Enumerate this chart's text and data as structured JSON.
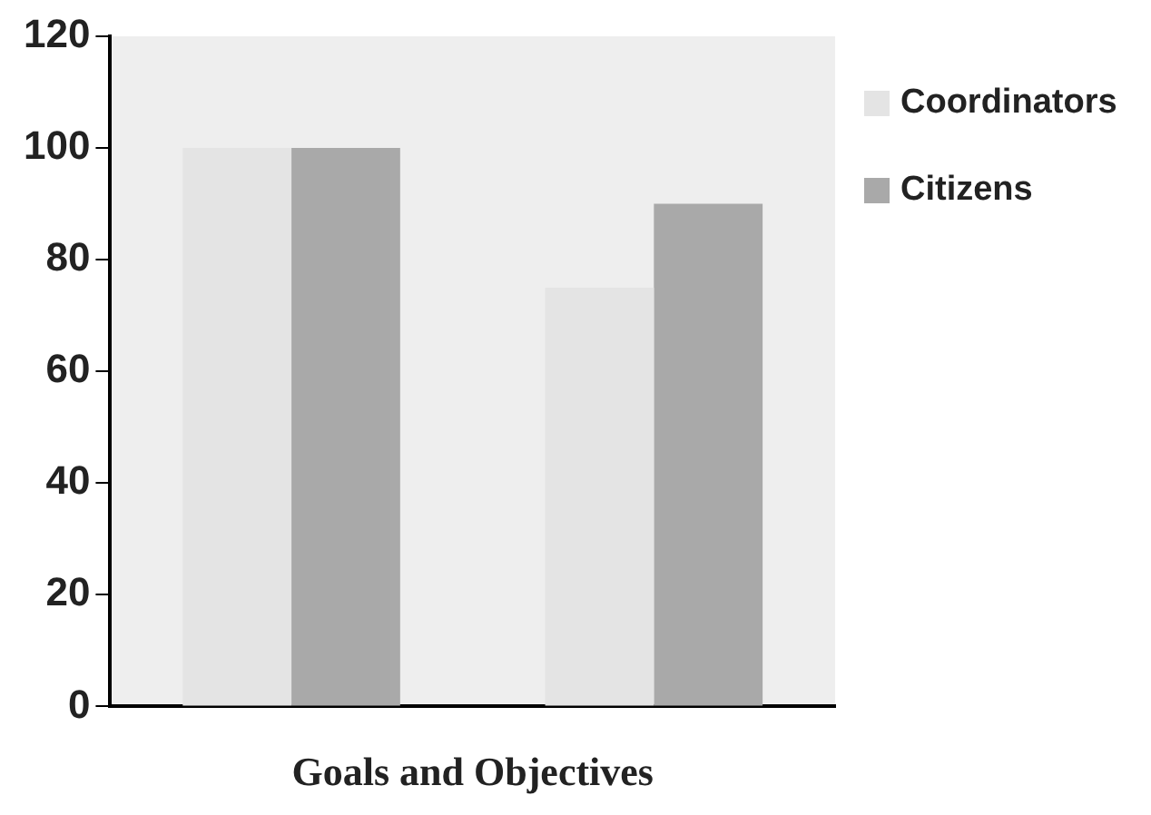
{
  "chart_data": {
    "type": "bar",
    "xlabel": "Goals and Objectives",
    "categories": [
      null,
      null
    ],
    "series": [
      {
        "name": "Coordinators",
        "color": "#e4e4e4",
        "values": [
          100,
          75
        ]
      },
      {
        "name": "Citizens",
        "color": "#a9a9a9",
        "values": [
          100,
          90
        ]
      }
    ],
    "ylim": [
      0,
      120
    ],
    "yticks": [
      0,
      20,
      40,
      60,
      80,
      100,
      120
    ],
    "grid": false,
    "legend": "right"
  }
}
